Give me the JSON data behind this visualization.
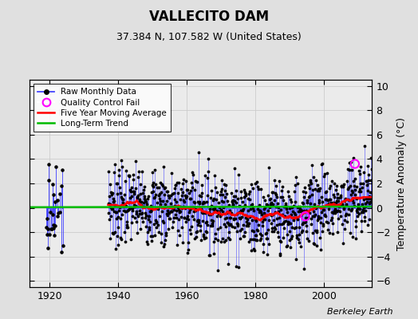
{
  "title": "VALLECITO DAM",
  "subtitle": "37.384 N, 107.582 W (United States)",
  "ylabel": "Temperature Anomaly (°C)",
  "attribution": "Berkeley Earth",
  "ylim": [
    -6.5,
    10.5
  ],
  "yticks": [
    -6,
    -4,
    -2,
    0,
    2,
    4,
    6,
    8,
    10
  ],
  "xlim": [
    1914,
    2014
  ],
  "xticks": [
    1920,
    1940,
    1960,
    1980,
    2000
  ],
  "bg_color": "#e0e0e0",
  "plot_bg_color": "#ebebeb",
  "raw_line_color": "#4444ff",
  "raw_dot_color": "#000000",
  "ma_color": "#ff0000",
  "trend_color": "#00bb00",
  "qc_color": "#ff00ff",
  "seed": 42
}
